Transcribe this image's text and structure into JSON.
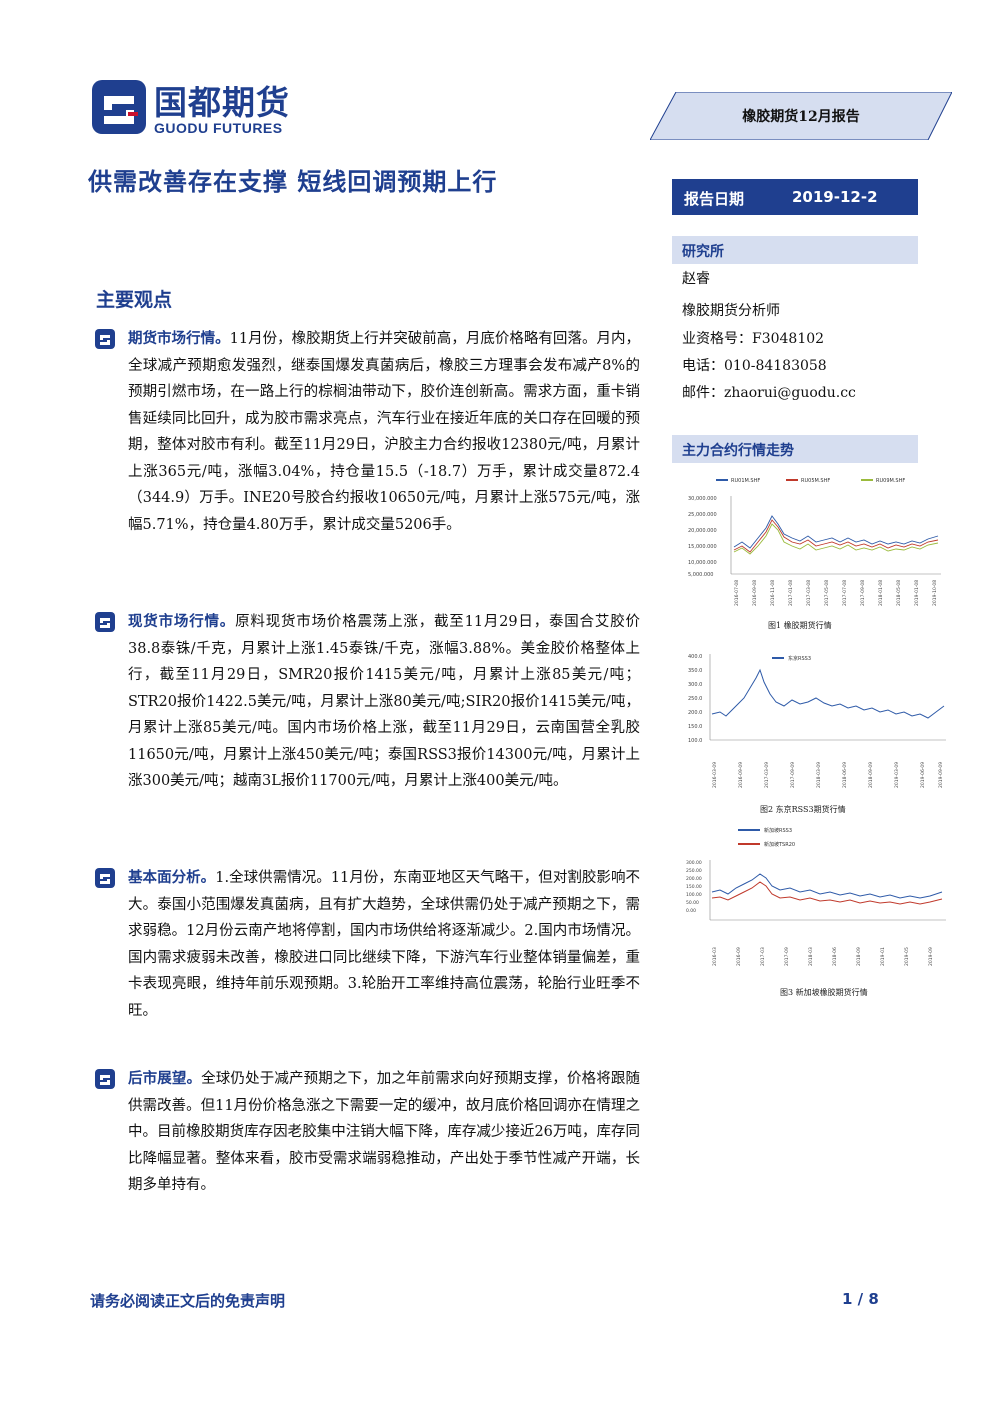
{
  "header": {
    "logo_cn": "国都期货",
    "logo_en": "GUODU FUTURES",
    "report_tag": "橡胶期货12月报告",
    "title": "供需改善存在支撑 短线回调预期上行",
    "date_label": "报告日期",
    "date_value": "2019-12-2"
  },
  "sidebar": {
    "institute_title": "研究所",
    "analyst_name": "赵睿",
    "analyst_role": "橡胶期货分析师",
    "license": "业资格号：F3048102",
    "phone": "电话：010-84183058",
    "email": "邮件：zhaorui@guodu.cc",
    "trend_title": "主力合约行情走势"
  },
  "main": {
    "section_title": "主要观点",
    "paragraphs": [
      {
        "lead": "期货市场行情。",
        "text": "11月份，橡胶期货上行并突破前高，月底价格略有回落。月内，全球减产预期愈发强烈，继泰国爆发真菌病后，橡胶三方理事会发布减产8%的预期引燃市场，在一路上行的棕榈油带动下，胶价连创新高。需求方面，重卡销售延续同比回升，成为胶市需求亮点，汽车行业在接近年底的关口存在回暖的预期，整体对胶市有利。截至11月29日，沪胶主力合约报收12380元/吨，月累计上涨365元/吨，涨幅3.04%，持仓量15.5（-18.7）万手，累计成交量872.4（344.9）万手。INE20号胶合约报收10650元/吨，月累计上涨575元/吨，涨幅5.71%，持仓量4.80万手，累计成交量5206手。"
      },
      {
        "lead": "现货市场行情。",
        "text": "原料现货市场价格震荡上涨，截至11月29日，泰国合艾胶价38.8泰铢/千克，月累计上涨1.45泰铢/千克，涨幅3.88%。美金胶价格整体上行，截至11月29日，SMR20报价1415美元/吨，月累计上涨85美元/吨；STR20报价1422.5美元/吨，月累计上涨80美元/吨;SIR20报价1415美元/吨，月累计上涨85美元/吨。国内市场价格上涨，截至11月29日，云南国营全乳胶11650元/吨，月累计上涨450美元/吨；泰国RSS3报价14300元/吨，月累计上涨300美元/吨；越南3L报价11700元/吨，月累计上涨400美元/吨。"
      },
      {
        "lead": "基本面分析。",
        "text": "1.全球供需情况。11月份，东南亚地区天气略干，但对割胶影响不大。泰国小范围爆发真菌病，且有扩大趋势，全球供需仍处于减产预期之下，需求弱稳。12月份云南产地将停割，国内市场供给将逐渐减少。2.国内市场情况。国内需求疲弱未改善，橡胶进口同比继续下降，下游汽车行业整体销量偏差，重卡表现亮眼，维持年前乐观预期。3.轮胎开工率维持高位震荡，轮胎行业旺季不旺。"
      },
      {
        "lead": "后市展望。",
        "text": "全球仍处于减产预期之下，加之年前需求向好预期支撑，价格将跟随供需改善。但11月份价格急涨之下需要一定的缓冲，故月底价格回调亦在情理之中。目前橡胶期货库存因老胶集中注销大幅下降，库存减少接近26万吨，库存同比降幅显著。整体来看，胶市受需求端弱稳推动，产出处于季节性减产开端，长期多单持有。"
      }
    ]
  },
  "charts": {
    "chart1": {
      "caption": "图1 橡胶期货行情",
      "legend": [
        "RU01M.SHF",
        "RU05M.SHF",
        "RU09M.SHF"
      ]
    },
    "chart2": {
      "caption": "图2 东京RSS3期货行情",
      "legend": [
        "东京RSS3"
      ]
    },
    "chart3": {
      "caption": "图3 新加坡橡胶期货行情",
      "legend": [
        "新加坡RSS3",
        "新加坡TSR20"
      ]
    }
  },
  "footer": {
    "disclaimer": "请务必阅读正文后的免责声明",
    "page": "1 / 8"
  }
}
